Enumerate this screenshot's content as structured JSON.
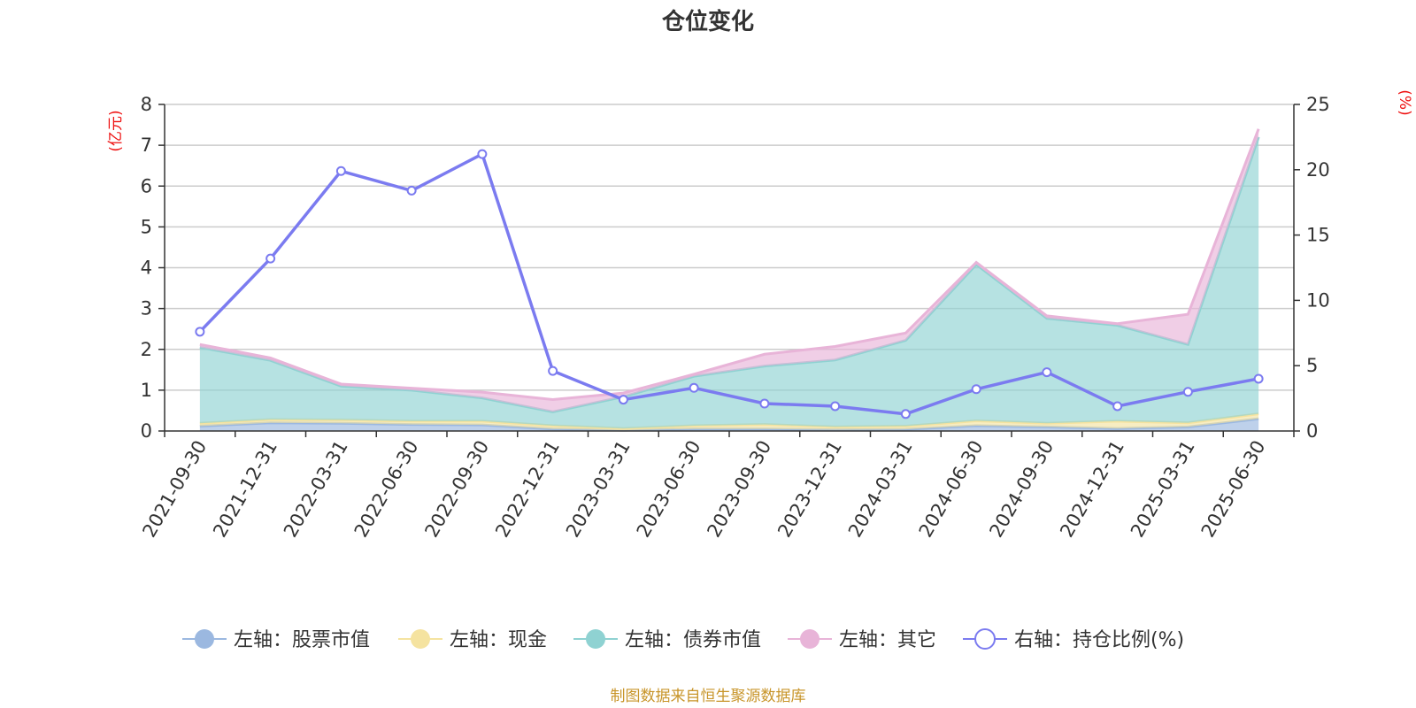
{
  "chart_data": {
    "type": "area",
    "title": "仓位变化",
    "left_axis_unit": "(亿元)",
    "right_axis_unit": "(%)",
    "categories": [
      "2021-09-30",
      "2021-12-31",
      "2022-03-31",
      "2022-06-30",
      "2022-09-30",
      "2022-12-31",
      "2023-03-31",
      "2023-06-30",
      "2023-09-30",
      "2023-12-31",
      "2024-03-31",
      "2024-06-30",
      "2024-09-30",
      "2024-12-31",
      "2025-03-31",
      "2025-06-30"
    ],
    "left_ylim": [
      0,
      8
    ],
    "left_yticks": [
      0,
      1,
      2,
      3,
      4,
      5,
      6,
      7,
      8
    ],
    "right_ylim": [
      0,
      25
    ],
    "right_yticks": [
      0,
      5,
      10,
      15,
      20,
      25
    ],
    "grid": true,
    "legend_position": "bottom",
    "series": [
      {
        "name": "左轴：股票市值",
        "axis": "left",
        "type": "stacked-area",
        "color": "#9bb8e0",
        "values": [
          0.12,
          0.2,
          0.19,
          0.16,
          0.15,
          0.05,
          0.02,
          0.05,
          0.05,
          0.03,
          0.04,
          0.13,
          0.1,
          0.06,
          0.1,
          0.3
        ]
      },
      {
        "name": "左轴：现金",
        "axis": "left",
        "type": "stacked-area",
        "color": "#f5e3a0",
        "values": [
          0.07,
          0.08,
          0.08,
          0.08,
          0.09,
          0.08,
          0.04,
          0.08,
          0.11,
          0.07,
          0.08,
          0.12,
          0.09,
          0.18,
          0.1,
          0.12
        ]
      },
      {
        "name": "左轴：债券市值",
        "axis": "left",
        "type": "stacked-area",
        "color": "#8fd2d2",
        "values": [
          1.86,
          1.45,
          0.83,
          0.76,
          0.57,
          0.34,
          0.78,
          1.21,
          1.43,
          1.64,
          2.1,
          3.83,
          2.57,
          2.35,
          1.92,
          6.78
        ]
      },
      {
        "name": "左轴：其它",
        "axis": "left",
        "type": "stacked-area",
        "color": "#e8b4d8",
        "values": [
          0.07,
          0.06,
          0.05,
          0.05,
          0.14,
          0.3,
          0.09,
          0.05,
          0.29,
          0.33,
          0.18,
          0.05,
          0.06,
          0.04,
          0.74,
          0.2
        ]
      },
      {
        "name": "右轴：持仓比例(%)",
        "axis": "right",
        "type": "line",
        "color": "#7b7bf0",
        "values": [
          7.6,
          13.2,
          19.9,
          18.4,
          21.2,
          4.6,
          2.4,
          3.3,
          2.1,
          1.9,
          1.3,
          3.2,
          4.5,
          1.9,
          3.0,
          4.0
        ]
      }
    ]
  },
  "source_text": "制图数据来自恒生聚源数据库"
}
